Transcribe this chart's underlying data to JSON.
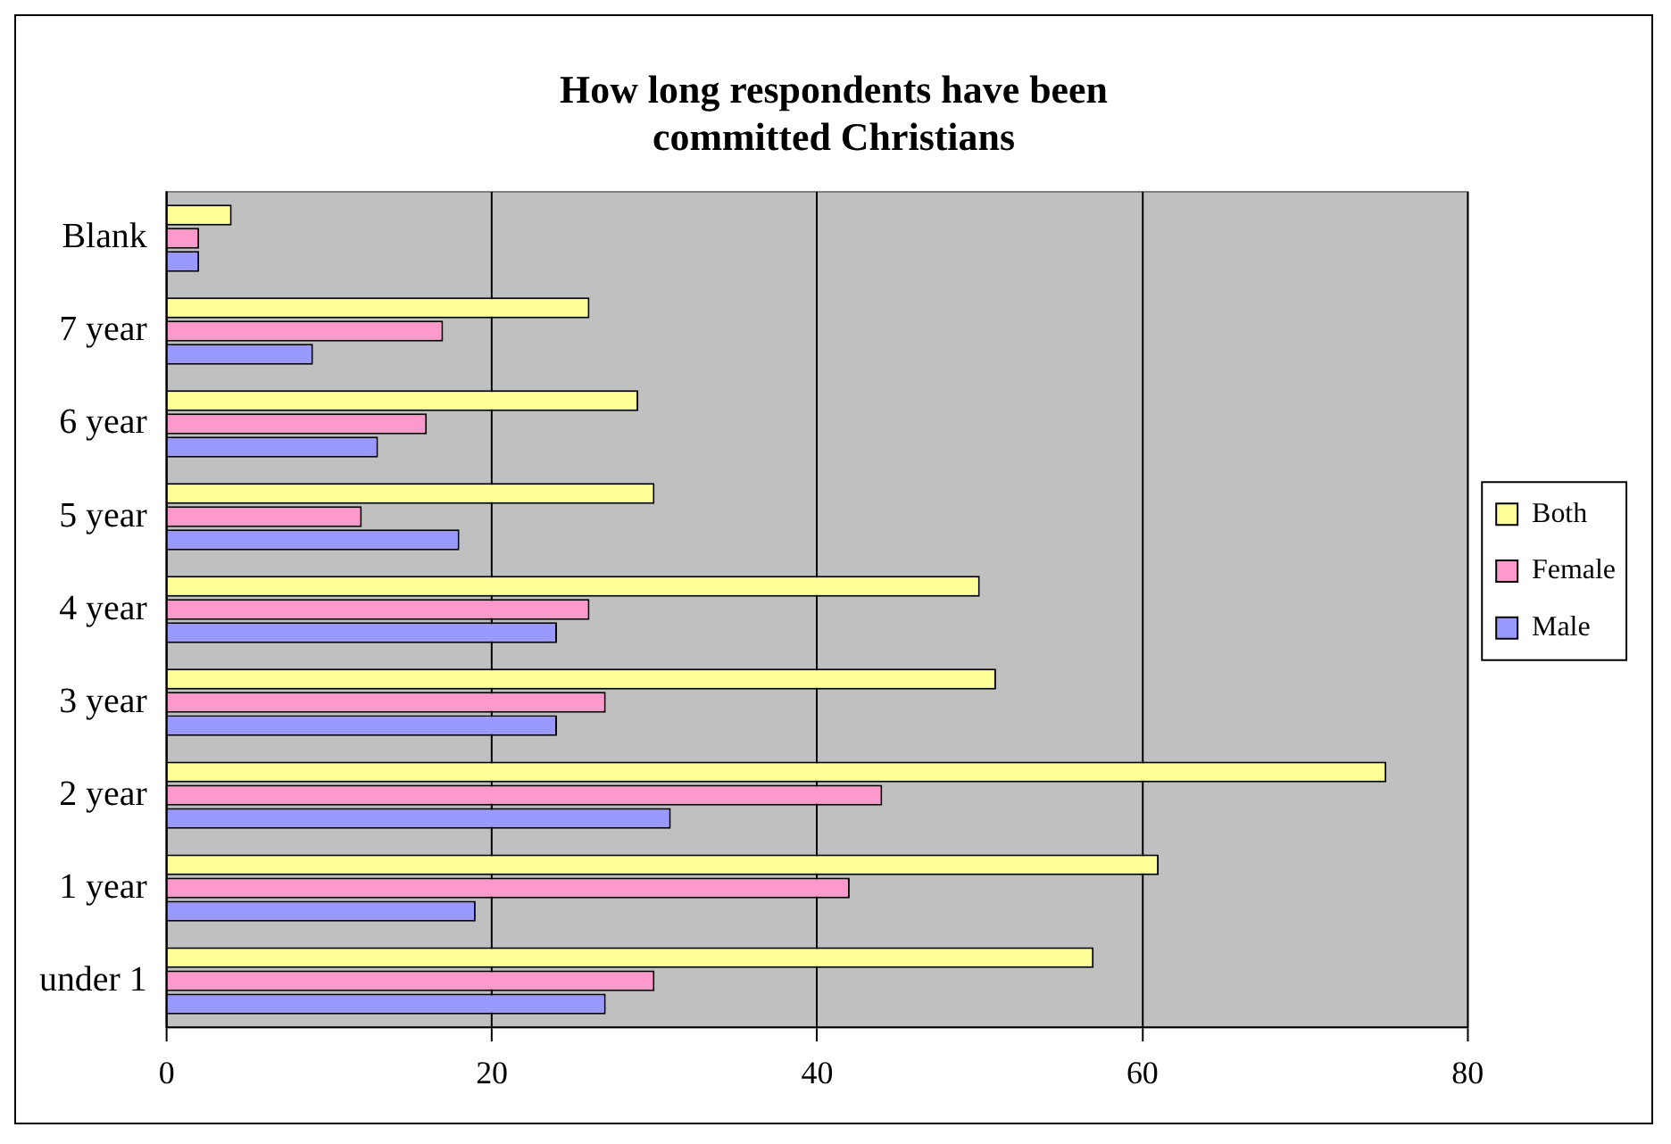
{
  "chart_data": {
    "type": "bar",
    "orientation": "horizontal",
    "title": "How long respondents have been committed Christians",
    "categories": [
      "Blank",
      "7 year",
      "6 year",
      "5 year",
      "4 year",
      "3 year",
      "2 year",
      "1 year",
      "under 1"
    ],
    "series": [
      {
        "name": "Both",
        "color": "#ffff99",
        "values": [
          4,
          26,
          29,
          30,
          50,
          51,
          75,
          61,
          57
        ]
      },
      {
        "name": "Female",
        "color": "#ff99cc",
        "values": [
          2,
          17,
          16,
          12,
          26,
          27,
          44,
          42,
          30
        ]
      },
      {
        "name": "Male",
        "color": "#9999ff",
        "values": [
          2,
          9,
          13,
          18,
          24,
          24,
          31,
          19,
          27
        ]
      }
    ],
    "xlim": [
      0,
      80
    ],
    "xticks": [
      0,
      20,
      40,
      60,
      80
    ],
    "grid": "x",
    "legend": "right"
  }
}
